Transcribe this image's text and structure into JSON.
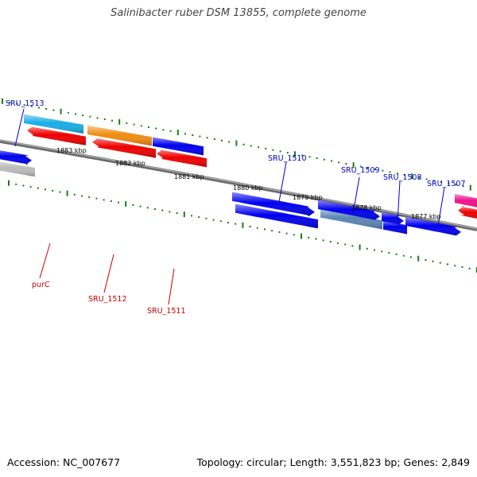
{
  "title": "Salinibacter ruber DSM 13855, complete genome",
  "accession": "Accession: NC_007677",
  "topology": "Topology: circular; Length: 3,551,823 bp; Genes: 2,849",
  "colors": {
    "backbone": "#808080",
    "ticks": "#1a7a1a",
    "label_plus": "#0000cc",
    "label_minus": "#cc0000",
    "gene_red": "#ee0000",
    "gene_blue": "#0000ee",
    "gene_cyan": "#18aee8",
    "gene_orange": "#f08c10",
    "gene_gray": "#bcbcbc",
    "gene_steel": "#5a86b4",
    "gene_pink": "#f0108c"
  },
  "scale_labels": [
    "1883 kbp",
    "1882 kbp",
    "1881 kbp",
    "1880 kbp",
    "1879 kbp",
    "1878 kbp",
    "1877 kbp"
  ],
  "genes": [
    {
      "label": "SRU_1513",
      "strand": "plus"
    },
    {
      "label": "SRU_1510",
      "strand": "plus"
    },
    {
      "label": "SRU_1509",
      "strand": "plus"
    },
    {
      "label": "SRU_1508",
      "strand": "plus"
    },
    {
      "label": "SRU_1507",
      "strand": "plus"
    },
    {
      "label": "purC",
      "strand": "minus"
    },
    {
      "label": "SRU_1512",
      "strand": "minus"
    },
    {
      "label": "SRU_1511",
      "strand": "minus"
    }
  ]
}
